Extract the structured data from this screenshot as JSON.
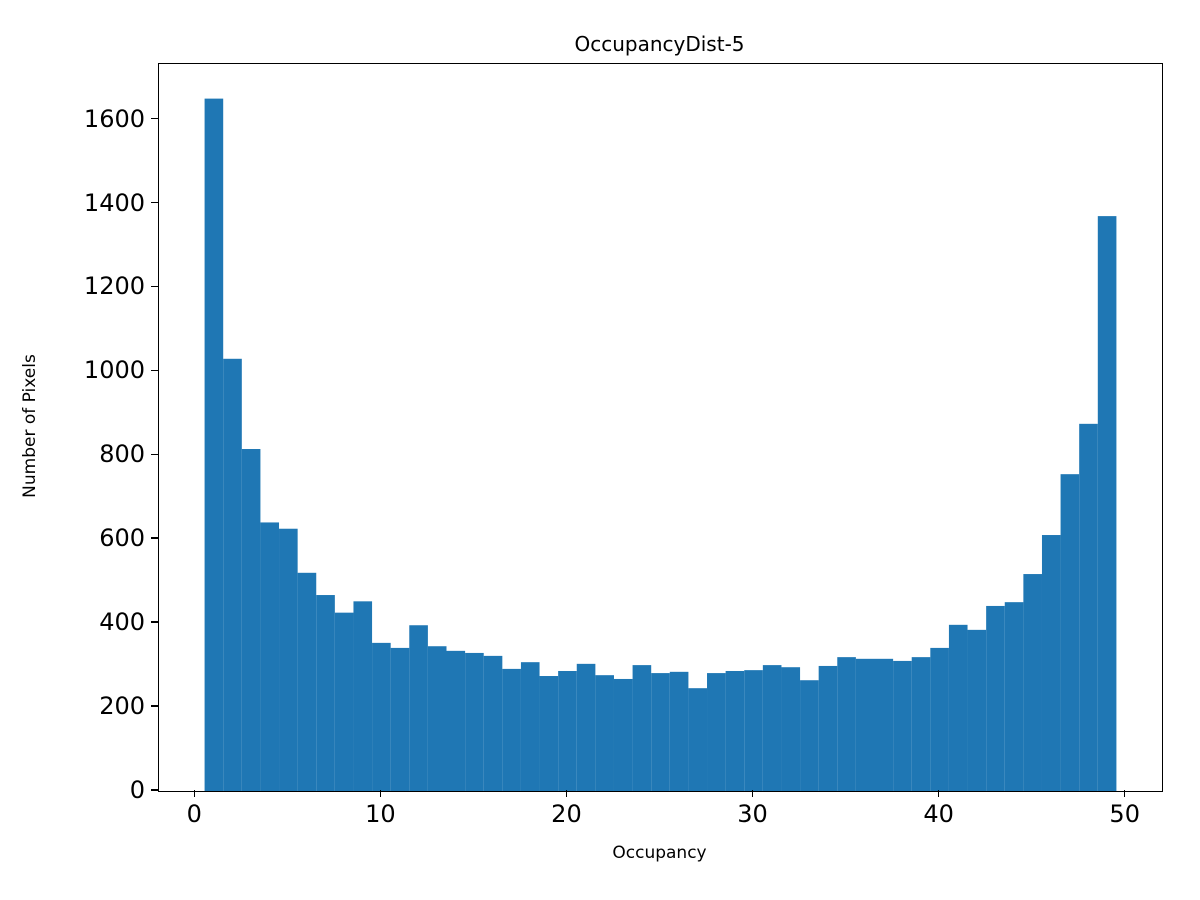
{
  "chart_data": {
    "type": "bar",
    "title": "OccupancyDist-5",
    "xlabel": "Occupancy",
    "ylabel": "Number of Pixels",
    "bar_color": "#1f77b4",
    "bin_start": 0.5,
    "bin_width": 1,
    "values": [
      1650,
      1030,
      815,
      640,
      625,
      520,
      467,
      425,
      452,
      353,
      341,
      395,
      345,
      334,
      329,
      322,
      291,
      307,
      274,
      286,
      303,
      276,
      267,
      300,
      281,
      284,
      245,
      281,
      286,
      288,
      300,
      295,
      264,
      298,
      319,
      315,
      315,
      310,
      319,
      341,
      396,
      384,
      441,
      450,
      517,
      610,
      755,
      875,
      1370
    ],
    "xlim": [
      -1.95,
      51.95
    ],
    "ylim": [
      0,
      1732.5
    ],
    "xticks": [
      0,
      10,
      20,
      30,
      40,
      50
    ],
    "yticks": [
      0,
      200,
      400,
      600,
      800,
      1000,
      1200,
      1400,
      1600
    ],
    "grid": false,
    "legend": "none"
  }
}
